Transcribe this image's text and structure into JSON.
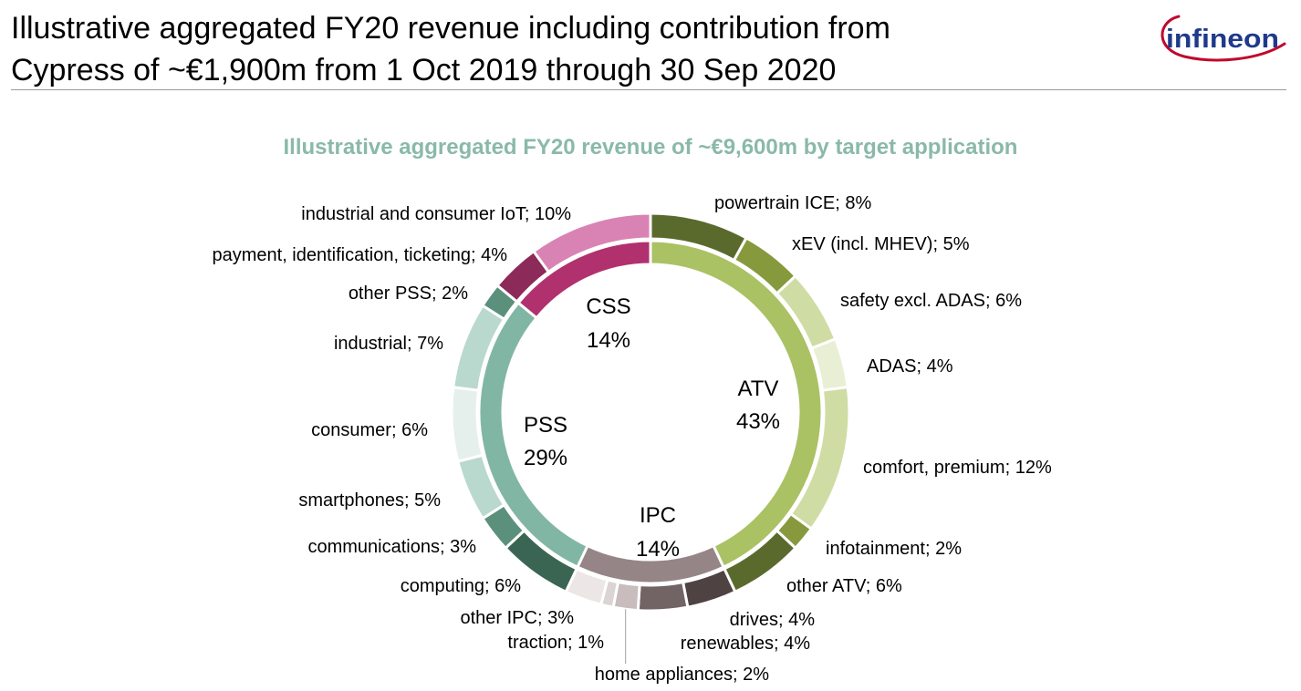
{
  "header": {
    "title_line1": "Illustrative aggregated FY20 revenue including contribution from",
    "title_line2": "Cypress of ~€1,900m from 1 Oct 2019 through 30 Sep 2020",
    "logo_text": "infineon"
  },
  "chart_data": {
    "type": "pie",
    "title": "Illustrative aggregated FY20 revenue of ~€9,600m by target application",
    "unit": "%",
    "inner_ring": [
      {
        "label": "ATV",
        "value_text": "43%",
        "value": 43,
        "color": "#aac164"
      },
      {
        "label": "IPC",
        "value_text": "14%",
        "value": 14,
        "color": "#968586"
      },
      {
        "label": "PSS",
        "value_text": "29%",
        "value": 29,
        "color": "#81b6a5"
      },
      {
        "label": "CSS",
        "value_text": "14%",
        "value": 14,
        "color": "#b1316f"
      }
    ],
    "outer_ring": [
      {
        "label": "powertrain ICE; 8%",
        "value": 8,
        "group": "ATV",
        "color": "#5a6a2d"
      },
      {
        "label": "xEV (incl. MHEV); 5%",
        "value": 5,
        "group": "ATV",
        "color": "#869a3d"
      },
      {
        "label": "safety excl. ADAS; 6%",
        "value": 6,
        "group": "ATV",
        "color": "#cfdca4"
      },
      {
        "label": "ADAS; 4%",
        "value": 4,
        "group": "ATV",
        "color": "#e9efd4"
      },
      {
        "label": "comfort, premium; 12%",
        "value": 12,
        "group": "ATV",
        "color": "#cfdca4"
      },
      {
        "label": "infotainment; 2%",
        "value": 2,
        "group": "ATV",
        "color": "#869a3d"
      },
      {
        "label": "other ATV; 6%",
        "value": 6,
        "group": "ATV",
        "color": "#5a6a2d"
      },
      {
        "label": "drives; 4%",
        "value": 4,
        "group": "IPC",
        "color": "#4e4243"
      },
      {
        "label": "renewables; 4%",
        "value": 4,
        "group": "IPC",
        "color": "#726364"
      },
      {
        "label": "home appliances; 2%",
        "value": 2,
        "group": "IPC",
        "color": "#c8bcbc"
      },
      {
        "label": "traction; 1%",
        "value": 1,
        "group": "IPC",
        "color": "#dcd3d3"
      },
      {
        "label": "other IPC; 3%",
        "value": 3,
        "group": "IPC",
        "color": "#ece6e6"
      },
      {
        "label": "computing; 6%",
        "value": 6,
        "group": "PSS",
        "color": "#3b6553"
      },
      {
        "label": "communications; 3%",
        "value": 3,
        "group": "PSS",
        "color": "#5b917c"
      },
      {
        "label": "smartphones; 5%",
        "value": 5,
        "group": "PSS",
        "color": "#b9d8ce"
      },
      {
        "label": "consumer; 6%",
        "value": 6,
        "group": "PSS",
        "color": "#e5f0ec"
      },
      {
        "label": "industrial; 7%",
        "value": 7,
        "group": "PSS",
        "color": "#b9d8ce"
      },
      {
        "label": "other PSS; 2%",
        "value": 2,
        "group": "PSS",
        "color": "#5b917c"
      },
      {
        "label": "payment, identification, ticketing; 4%",
        "value": 4,
        "group": "CSS",
        "color": "#8c2a5a"
      },
      {
        "label": "industrial and consumer IoT; 10%",
        "value": 10,
        "group": "CSS",
        "color": "#d983b4"
      }
    ]
  }
}
